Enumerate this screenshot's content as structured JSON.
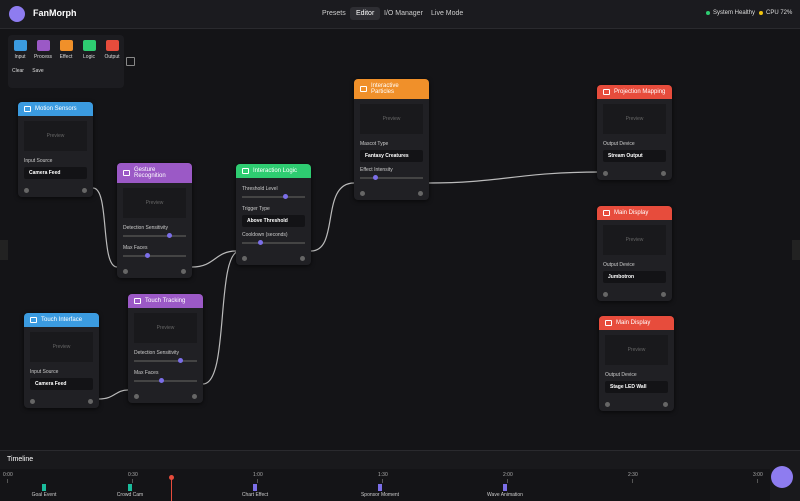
{
  "app": {
    "logo": "FanMorph"
  },
  "nav": [
    "Presets",
    "Editor",
    "I/O Manager",
    "Live Mode"
  ],
  "status": [
    "System Healthy",
    "CPU 72%"
  ],
  "toolbar": {
    "tools": [
      "Input",
      "Process",
      "Effect",
      "Logic",
      "Output"
    ],
    "actions": [
      "Clear",
      "Save"
    ]
  },
  "nodes": [
    {
      "title": "Motion Sensors",
      "preview": "Preview",
      "fields": [
        {
          "label": "Input Source",
          "value": "Camera Feed"
        }
      ]
    },
    {
      "title": "Gesture Recognition",
      "preview": "Preview",
      "fields": [
        {
          "label": "Detection Sensitivity"
        },
        {
          "label": "Max Faces"
        }
      ]
    },
    {
      "title": "Interaction Logic",
      "fields": [
        {
          "label": "Threshold Level"
        },
        {
          "label": "Trigger Type",
          "value": "Above Threshold"
        },
        {
          "label": "Cooldown (seconds)"
        }
      ]
    },
    {
      "title": "Interactive Particles",
      "preview": "Preview",
      "fields": [
        {
          "label": "Mascot Type",
          "value": "Fantasy Creatures"
        },
        {
          "label": "Effect Intensity"
        }
      ]
    },
    {
      "title": "Projection Mapping",
      "preview": "Preview",
      "fields": [
        {
          "label": "Output Device",
          "value": "Stream Output"
        }
      ]
    },
    {
      "title": "Main Display",
      "preview": "Preview",
      "fields": [
        {
          "label": "Output Device",
          "value": "Jumbotron"
        }
      ]
    },
    {
      "title": "Main Display",
      "preview": "Preview",
      "fields": [
        {
          "label": "Output Device",
          "value": "Stage LED Wall"
        }
      ]
    },
    {
      "title": "Touch Tracking",
      "preview": "Preview",
      "fields": [
        {
          "label": "Detection Sensitivity"
        },
        {
          "label": "Max Faces"
        }
      ]
    },
    {
      "title": "Touch Interface",
      "preview": "Preview",
      "fields": [
        {
          "label": "Input Source",
          "value": "Camera Feed"
        }
      ]
    }
  ],
  "timeline": {
    "title": "Timeline",
    "ticks": [
      "0:00",
      "0:30",
      "1:00",
      "1:30",
      "2:00",
      "2:30",
      "3:00"
    ],
    "events": [
      "Goal Event",
      "Crowd Cam",
      "Chart Effect",
      "Sponsor Moment",
      "Wave Animation"
    ]
  }
}
